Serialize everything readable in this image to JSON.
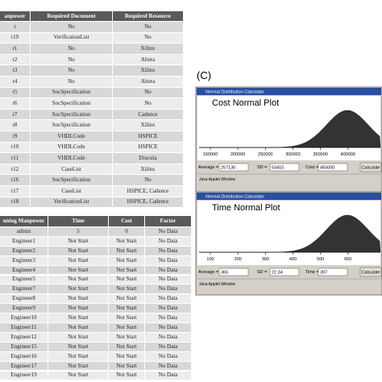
{
  "resource_table": {
    "headers": [
      "anpower",
      "Required Document",
      "Required Resource"
    ],
    "rows": [
      [
        "r",
        "No",
        "No"
      ],
      [
        "r19",
        "VerificationList",
        "No"
      ],
      [
        "r1",
        "No",
        "Xilinx"
      ],
      [
        "r2",
        "No",
        "Altera"
      ],
      [
        "r3",
        "No",
        "Xilinx"
      ],
      [
        "r4",
        "No",
        "Altera"
      ],
      [
        "r5",
        "SocSpecification",
        "No"
      ],
      [
        "r6",
        "SocSpecification",
        "No"
      ],
      [
        "r7",
        "SocSpecification",
        "Cadence"
      ],
      [
        "r8",
        "SocSpecification",
        "Xilinx"
      ],
      [
        "r9",
        "VHDLCode",
        "HSPICE"
      ],
      [
        "r10",
        "VHDLCode",
        "HSPICE"
      ],
      [
        "r11",
        "VHDLCode",
        "Dracula"
      ],
      [
        "r12",
        "CaseList",
        "Xilinx"
      ],
      [
        "r16",
        "SocSpecification",
        "No"
      ],
      [
        "r17",
        "CaseList",
        "HSPICE, Cadence"
      ],
      [
        "r18",
        "VerificationList",
        "HSPICE, Cadence"
      ]
    ]
  },
  "progress_table": {
    "headers": [
      "nning Manpower",
      "Time",
      "Cost",
      "Factor"
    ],
    "rows": [
      [
        "admin",
        "5",
        "0",
        "No Data"
      ],
      [
        "Engineer1",
        "Not Start",
        "Not Start",
        "No Data"
      ],
      [
        "Engineer2",
        "Not Start",
        "Not Start",
        "No Data"
      ],
      [
        "Engineer3",
        "Not Start",
        "Not Start",
        "No Data"
      ],
      [
        "Engineer4",
        "Not Start",
        "Not Start",
        "No Data"
      ],
      [
        "Engineer5",
        "Not Start",
        "Not Start",
        "No Data"
      ],
      [
        "Engineer7",
        "Not Start",
        "Not Start",
        "No Data"
      ],
      [
        "Engineer8",
        "Not Start",
        "Not Start",
        "No Data"
      ],
      [
        "Engineer9",
        "Not Start",
        "Not Start",
        "No Data"
      ],
      [
        "Engineer10",
        "Not Start",
        "Not Start",
        "No Data"
      ],
      [
        "Engineer11",
        "Not Start",
        "Not Start",
        "No Data"
      ],
      [
        "Engineer12",
        "Not Start",
        "Not Start",
        "No Data"
      ],
      [
        "Engineer15",
        "Not Start",
        "Not Start",
        "No Data"
      ],
      [
        "Engineer16",
        "Not Start",
        "Not Start",
        "No Data"
      ],
      [
        "Engineer17",
        "Not Start",
        "Not Start",
        "No Data"
      ],
      [
        "Engineer19",
        "Not Start",
        "Not Start",
        "No Data"
      ]
    ]
  },
  "panel_label": "(C)",
  "windows": [
    {
      "title": "Normal Distribution Calculator",
      "plot_title": "Cost Normal Plot",
      "axis_ticks": [
        "150000",
        "200000",
        "250000",
        "300000",
        "350000",
        "400000"
      ],
      "fields": [
        {
          "label": "Average =",
          "value": "257130"
        },
        {
          "label": "SD =",
          "value": "53410"
        },
        {
          "label": "Cost =",
          "value": "450000"
        }
      ],
      "button": "Calculate",
      "status": "Java Applet Window"
    },
    {
      "title": "Normal Distribution Calculator",
      "plot_title": "Time Normal Plot",
      "axis_ticks": [
        "100",
        "200",
        "300",
        "400",
        "500",
        "600"
      ],
      "fields": [
        {
          "label": "Average =",
          "value": "365"
        },
        {
          "label": "SD =",
          "value": "22.34"
        },
        {
          "label": "Time =",
          "value": "397"
        }
      ],
      "button": "Calculate",
      "status": "Java Applet Window"
    }
  ]
}
